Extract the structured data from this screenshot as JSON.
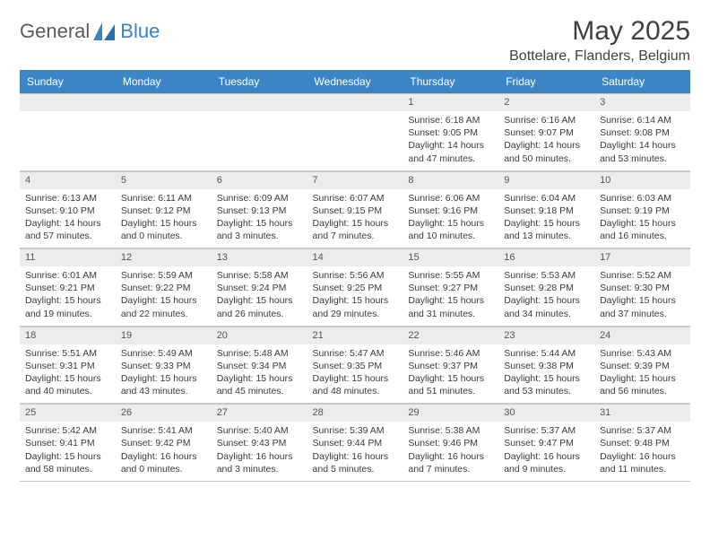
{
  "brand": {
    "part1": "General",
    "part2": "Blue"
  },
  "title": "May 2025",
  "location": "Bottelare, Flanders, Belgium",
  "colors": {
    "header_bg": "#3d86c6",
    "header_text": "#ffffff",
    "daynum_bg": "#ececec",
    "border": "#c9c9c9",
    "body_text": "#3a3a3a",
    "brand_gray": "#5a5a5a",
    "brand_blue": "#3b82c4"
  },
  "weekdays": [
    "Sunday",
    "Monday",
    "Tuesday",
    "Wednesday",
    "Thursday",
    "Friday",
    "Saturday"
  ],
  "weeks": [
    [
      null,
      null,
      null,
      null,
      {
        "n": "1",
        "sr": "6:18 AM",
        "ss": "9:05 PM",
        "dl": "14 hours and 47 minutes."
      },
      {
        "n": "2",
        "sr": "6:16 AM",
        "ss": "9:07 PM",
        "dl": "14 hours and 50 minutes."
      },
      {
        "n": "3",
        "sr": "6:14 AM",
        "ss": "9:08 PM",
        "dl": "14 hours and 53 minutes."
      }
    ],
    [
      {
        "n": "4",
        "sr": "6:13 AM",
        "ss": "9:10 PM",
        "dl": "14 hours and 57 minutes."
      },
      {
        "n": "5",
        "sr": "6:11 AM",
        "ss": "9:12 PM",
        "dl": "15 hours and 0 minutes."
      },
      {
        "n": "6",
        "sr": "6:09 AM",
        "ss": "9:13 PM",
        "dl": "15 hours and 3 minutes."
      },
      {
        "n": "7",
        "sr": "6:07 AM",
        "ss": "9:15 PM",
        "dl": "15 hours and 7 minutes."
      },
      {
        "n": "8",
        "sr": "6:06 AM",
        "ss": "9:16 PM",
        "dl": "15 hours and 10 minutes."
      },
      {
        "n": "9",
        "sr": "6:04 AM",
        "ss": "9:18 PM",
        "dl": "15 hours and 13 minutes."
      },
      {
        "n": "10",
        "sr": "6:03 AM",
        "ss": "9:19 PM",
        "dl": "15 hours and 16 minutes."
      }
    ],
    [
      {
        "n": "11",
        "sr": "6:01 AM",
        "ss": "9:21 PM",
        "dl": "15 hours and 19 minutes."
      },
      {
        "n": "12",
        "sr": "5:59 AM",
        "ss": "9:22 PM",
        "dl": "15 hours and 22 minutes."
      },
      {
        "n": "13",
        "sr": "5:58 AM",
        "ss": "9:24 PM",
        "dl": "15 hours and 26 minutes."
      },
      {
        "n": "14",
        "sr": "5:56 AM",
        "ss": "9:25 PM",
        "dl": "15 hours and 29 minutes."
      },
      {
        "n": "15",
        "sr": "5:55 AM",
        "ss": "9:27 PM",
        "dl": "15 hours and 31 minutes."
      },
      {
        "n": "16",
        "sr": "5:53 AM",
        "ss": "9:28 PM",
        "dl": "15 hours and 34 minutes."
      },
      {
        "n": "17",
        "sr": "5:52 AM",
        "ss": "9:30 PM",
        "dl": "15 hours and 37 minutes."
      }
    ],
    [
      {
        "n": "18",
        "sr": "5:51 AM",
        "ss": "9:31 PM",
        "dl": "15 hours and 40 minutes."
      },
      {
        "n": "19",
        "sr": "5:49 AM",
        "ss": "9:33 PM",
        "dl": "15 hours and 43 minutes."
      },
      {
        "n": "20",
        "sr": "5:48 AM",
        "ss": "9:34 PM",
        "dl": "15 hours and 45 minutes."
      },
      {
        "n": "21",
        "sr": "5:47 AM",
        "ss": "9:35 PM",
        "dl": "15 hours and 48 minutes."
      },
      {
        "n": "22",
        "sr": "5:46 AM",
        "ss": "9:37 PM",
        "dl": "15 hours and 51 minutes."
      },
      {
        "n": "23",
        "sr": "5:44 AM",
        "ss": "9:38 PM",
        "dl": "15 hours and 53 minutes."
      },
      {
        "n": "24",
        "sr": "5:43 AM",
        "ss": "9:39 PM",
        "dl": "15 hours and 56 minutes."
      }
    ],
    [
      {
        "n": "25",
        "sr": "5:42 AM",
        "ss": "9:41 PM",
        "dl": "15 hours and 58 minutes."
      },
      {
        "n": "26",
        "sr": "5:41 AM",
        "ss": "9:42 PM",
        "dl": "16 hours and 0 minutes."
      },
      {
        "n": "27",
        "sr": "5:40 AM",
        "ss": "9:43 PM",
        "dl": "16 hours and 3 minutes."
      },
      {
        "n": "28",
        "sr": "5:39 AM",
        "ss": "9:44 PM",
        "dl": "16 hours and 5 minutes."
      },
      {
        "n": "29",
        "sr": "5:38 AM",
        "ss": "9:46 PM",
        "dl": "16 hours and 7 minutes."
      },
      {
        "n": "30",
        "sr": "5:37 AM",
        "ss": "9:47 PM",
        "dl": "16 hours and 9 minutes."
      },
      {
        "n": "31",
        "sr": "5:37 AM",
        "ss": "9:48 PM",
        "dl": "16 hours and 11 minutes."
      }
    ]
  ],
  "labels": {
    "sunrise": "Sunrise:",
    "sunset": "Sunset:",
    "daylight": "Daylight:"
  }
}
